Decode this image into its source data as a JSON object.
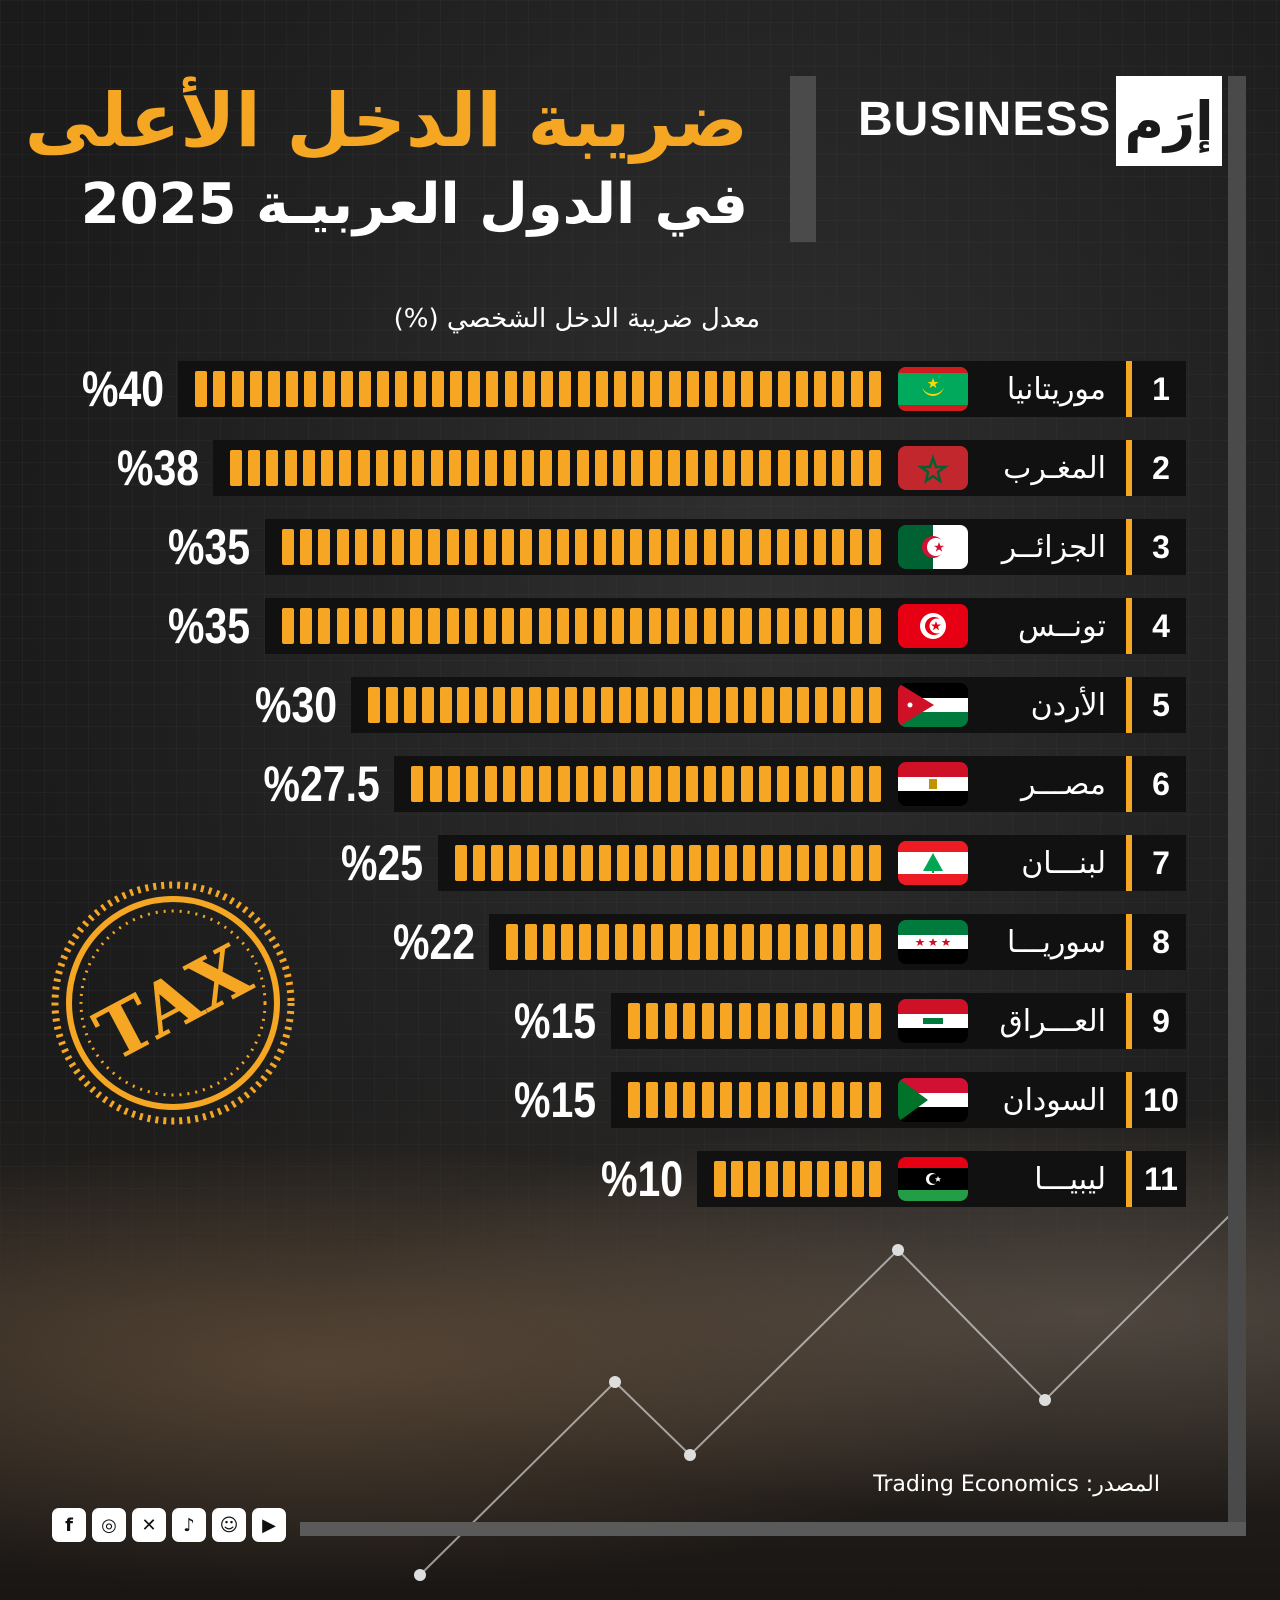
{
  "header": {
    "title_line1": "ضريبة الدخل الأعلى",
    "title_line2": "في الدول العربيـة 2025",
    "brand_word": "BUSINESS",
    "brand_logo": "إرَم"
  },
  "stamp_text": "TAX",
  "source": "المصدر: Trading Economics",
  "social_icons": [
    "facebook-icon",
    "instagram-icon",
    "x-icon",
    "tiktok-icon",
    "snapchat-icon",
    "youtube-icon"
  ],
  "colors": {
    "accent": "#f6a623",
    "background": "#1f1f1f",
    "panel": "#111111"
  },
  "chart_data": {
    "type": "bar",
    "orientation": "horizontal",
    "title": "ضريبة الدخل الأعلى في الدول العربيـة 2025",
    "xlabel": "معدل ضريبة الدخل الشخصي (%)",
    "ylabel": "",
    "xlim": [
      0,
      40
    ],
    "grid": false,
    "categories": [
      "موريتانيا",
      "المغـرب",
      "الجزائــر",
      "تونــس",
      "الأردن",
      "مصـــر",
      "لبنـــان",
      "سوريـــا",
      "العـــراق",
      "السودان",
      "ليبيـــا"
    ],
    "ranks": [
      "1",
      "2",
      "3",
      "4",
      "5",
      "6",
      "7",
      "8",
      "9",
      "10",
      "11"
    ],
    "values": [
      40,
      38,
      35,
      35,
      30,
      27.5,
      25,
      22,
      15,
      15,
      10
    ],
    "value_labels": [
      "%40",
      "%38",
      "%35",
      "%35",
      "%30",
      "%27.5",
      "%25",
      "%22",
      "%15",
      "%15",
      "%10"
    ],
    "flags": [
      "flag-mauritania-icon",
      "flag-morocco-icon",
      "flag-algeria-icon",
      "flag-tunisia-icon",
      "flag-jordan-icon",
      "flag-egypt-icon",
      "flag-lebanon-icon",
      "flag-syria-icon",
      "flag-iraq-icon",
      "flag-sudan-icon",
      "flag-libya-icon"
    ]
  }
}
